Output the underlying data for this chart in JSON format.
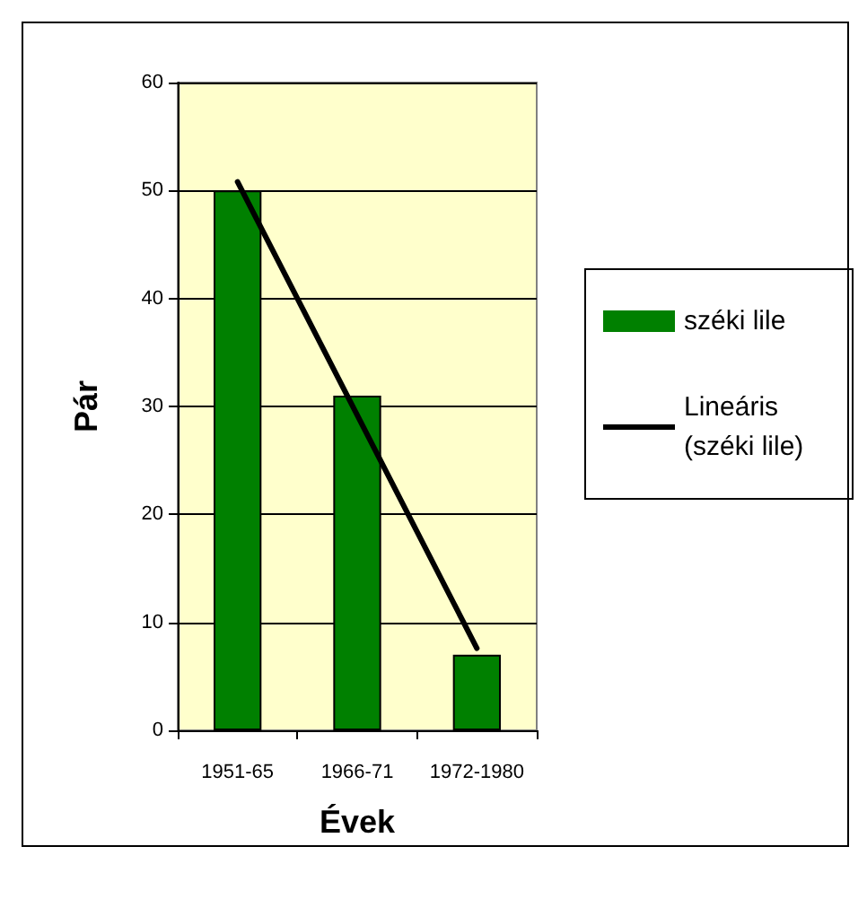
{
  "chart_data": {
    "type": "bar",
    "xlabel": "Évek",
    "ylabel": "Pár",
    "categories": [
      "1951-65",
      "1966-71",
      "1972-1980"
    ],
    "series": [
      {
        "name": "széki lile",
        "color": "#008000",
        "values": [
          50,
          31,
          7
        ]
      },
      {
        "name": "Lineáris (széki lile)",
        "type": "line",
        "color": "#000000",
        "x": [
          "1951-65",
          "1972-1980"
        ],
        "values": [
          50.8,
          7.6
        ],
        "marker": "none",
        "line_style": "solid"
      }
    ],
    "ylim": [
      0,
      60
    ],
    "yticks": [
      0,
      10,
      20,
      30,
      40,
      50,
      60
    ],
    "grid": "y",
    "legend": "right"
  }
}
